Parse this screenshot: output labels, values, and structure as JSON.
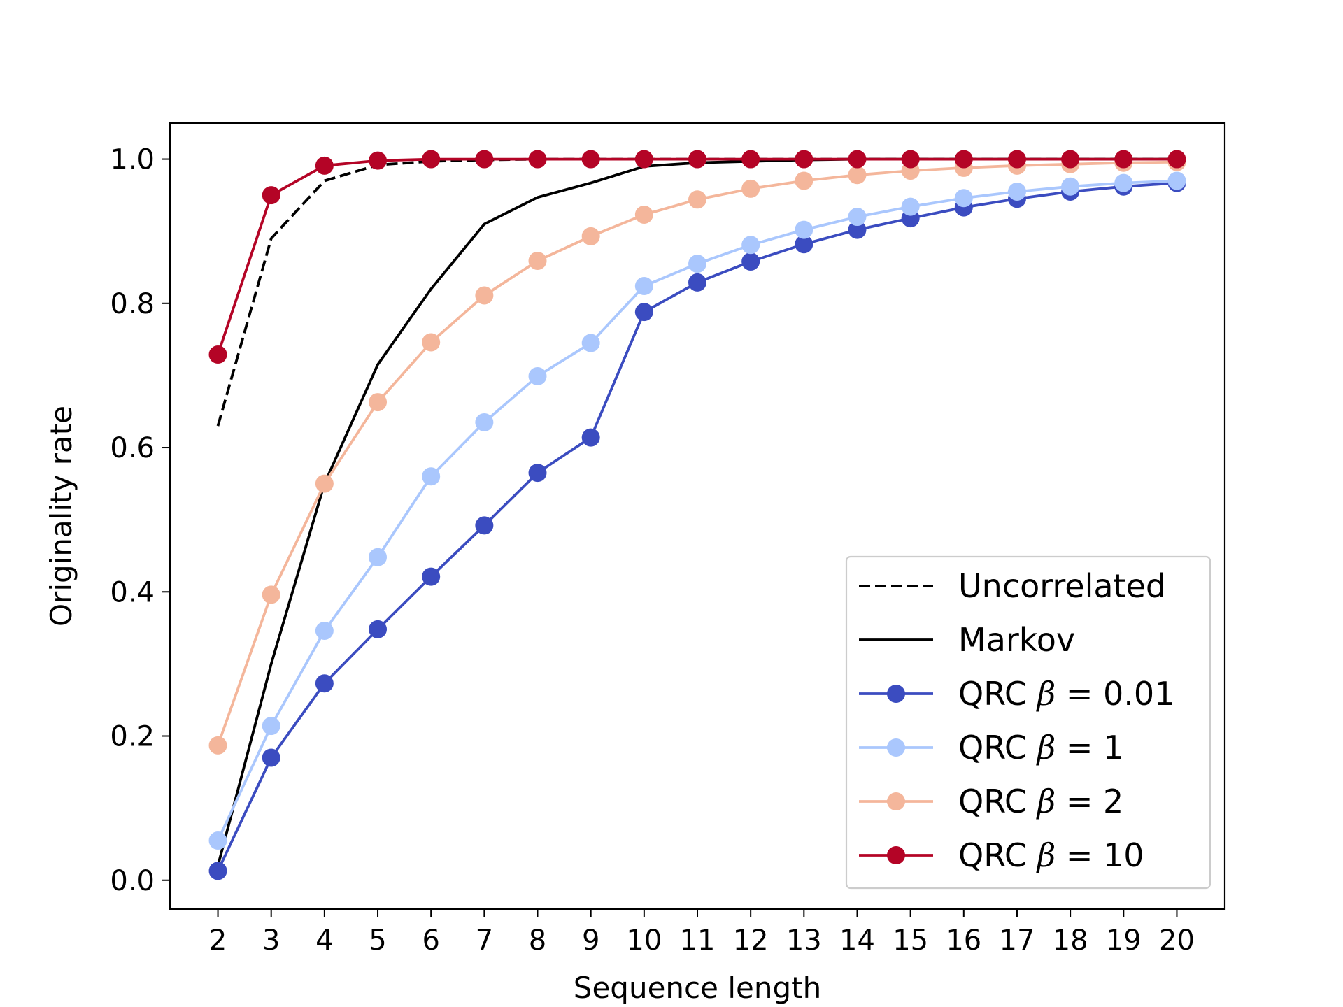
{
  "chart_data": {
    "type": "line",
    "xlabel": "Sequence length",
    "ylabel": "Originality rate",
    "x": [
      2,
      3,
      4,
      5,
      6,
      7,
      8,
      9,
      10,
      11,
      12,
      13,
      14,
      15,
      16,
      17,
      18,
      19,
      20
    ],
    "xlim": [
      1.1,
      20.9
    ],
    "ylim": [
      -0.04,
      1.05
    ],
    "yticks": [
      "0.0",
      "0.2",
      "0.4",
      "0.6",
      "0.8",
      "1.0"
    ],
    "xticks": [
      "2",
      "3",
      "4",
      "5",
      "6",
      "7",
      "8",
      "9",
      "10",
      "11",
      "12",
      "13",
      "14",
      "15",
      "16",
      "17",
      "18",
      "19",
      "20"
    ],
    "grid": false,
    "legend_position": "bottom-right",
    "series": [
      {
        "name": "Uncorrelated",
        "style": "dashed",
        "markers": false,
        "color": "#000000",
        "values": [
          0.63,
          0.89,
          0.97,
          0.992,
          0.997,
          0.999,
          1.0,
          1.0,
          1.0,
          1.0,
          1.0,
          1.0,
          1.0,
          1.0,
          1.0,
          1.0,
          1.0,
          1.0,
          1.0
        ]
      },
      {
        "name": "Markov",
        "style": "solid",
        "markers": false,
        "color": "#000000",
        "values": [
          0.02,
          0.3,
          0.55,
          0.715,
          0.82,
          0.91,
          0.947,
          0.967,
          0.99,
          0.995,
          0.997,
          0.999,
          1.0,
          1.0,
          1.0,
          1.0,
          1.0,
          1.0,
          1.0
        ]
      },
      {
        "name": "QRC",
        "beta": "0.01",
        "style": "solid",
        "markers": true,
        "color": "#3b4cc0",
        "values": [
          0.013,
          0.17,
          0.273,
          0.348,
          0.421,
          0.492,
          0.565,
          0.614,
          0.788,
          0.829,
          0.858,
          0.882,
          0.902,
          0.918,
          0.933,
          0.945,
          0.955,
          0.962,
          0.967
        ]
      },
      {
        "name": "QRC",
        "beta": "1",
        "style": "solid",
        "markers": true,
        "color": "#aac7fd",
        "values": [
          0.055,
          0.214,
          0.346,
          0.448,
          0.56,
          0.635,
          0.699,
          0.745,
          0.824,
          0.855,
          0.881,
          0.902,
          0.92,
          0.934,
          0.946,
          0.955,
          0.962,
          0.967,
          0.97
        ]
      },
      {
        "name": "QRC",
        "beta": "2",
        "style": "solid",
        "markers": true,
        "color": "#f4b69b",
        "values": [
          0.187,
          0.396,
          0.55,
          0.663,
          0.746,
          0.811,
          0.859,
          0.893,
          0.923,
          0.944,
          0.959,
          0.97,
          0.978,
          0.984,
          0.988,
          0.991,
          0.993,
          0.995,
          0.996
        ]
      },
      {
        "name": "QRC",
        "beta": "10",
        "style": "solid",
        "markers": true,
        "color": "#b40426",
        "values": [
          0.729,
          0.95,
          0.991,
          0.998,
          1.0,
          1.0,
          1.0,
          1.0,
          1.0,
          1.0,
          1.0,
          1.0,
          1.0,
          1.0,
          1.0,
          1.0,
          1.0,
          1.0,
          1.0
        ]
      }
    ]
  }
}
